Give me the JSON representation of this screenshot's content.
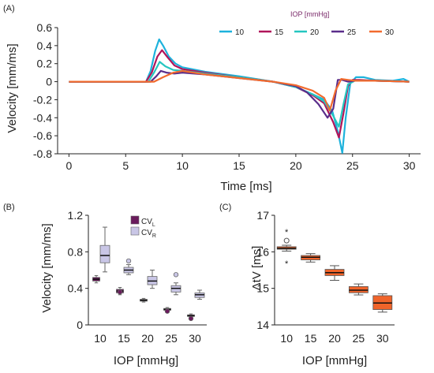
{
  "colors": {
    "iop10": "#1db2dc",
    "iop15": "#b0155a",
    "iop20": "#25c6c0",
    "iop25": "#5a2d8a",
    "iop30": "#f26b2e",
    "cvl": "#6a1b5c",
    "cvr": "#c9c6e6",
    "dtv_box": "#f0642a"
  },
  "chart_data": [
    {
      "panel": "(A)",
      "type": "line",
      "xlabel": "Time [ms]",
      "ylabel": "Velocity [mm/ms]",
      "xlim": [
        -1,
        31
      ],
      "ylim": [
        -0.8,
        0.6
      ],
      "xticks": [
        0,
        5,
        10,
        15,
        20,
        25,
        30
      ],
      "yticks": [
        -0.8,
        -0.6,
        -0.4,
        -0.2,
        0,
        0.2,
        0.4,
        0.6
      ],
      "legend_title": "IOP [mmHg]",
      "legend_position": "top-right",
      "series": [
        {
          "name": "10",
          "color_key": "iop10",
          "x": [
            0,
            6.8,
            7.2,
            7.6,
            7.95,
            8.3,
            8.8,
            9.4,
            10,
            12,
            15,
            18,
            20,
            21.5,
            22.5,
            23.2,
            23.7,
            24.1,
            24.4,
            24.8,
            25.3,
            26,
            27,
            28.5,
            29.5,
            30
          ],
          "y": [
            0,
            0,
            0.12,
            0.34,
            0.47,
            0.4,
            0.28,
            0.2,
            0.16,
            0.11,
            0.06,
            0,
            -0.06,
            -0.14,
            -0.2,
            -0.32,
            -0.55,
            -0.79,
            -0.4,
            -0.02,
            0.05,
            0.05,
            0.02,
            0.01,
            0.03,
            0
          ]
        },
        {
          "name": "15",
          "color_key": "iop15",
          "x": [
            0,
            6.8,
            7.3,
            7.8,
            8.2,
            8.7,
            9.3,
            10,
            12,
            15,
            18,
            20,
            21.5,
            22.5,
            23.3,
            23.8,
            24.2,
            24.6,
            25,
            25.6,
            27,
            30
          ],
          "y": [
            0,
            0,
            0.1,
            0.28,
            0.35,
            0.27,
            0.18,
            0.14,
            0.1,
            0.05,
            0,
            -0.06,
            -0.15,
            -0.24,
            -0.45,
            -0.62,
            -0.35,
            -0.05,
            0.02,
            0.02,
            0.01,
            0
          ]
        },
        {
          "name": "20",
          "color_key": "iop20",
          "x": [
            0,
            7,
            7.5,
            8,
            8.5,
            9.2,
            10,
            12,
            15,
            18,
            20,
            21.5,
            22.5,
            23.3,
            23.8,
            24.2,
            24.6,
            25.2,
            27,
            30
          ],
          "y": [
            0,
            0,
            0.1,
            0.22,
            0.17,
            0.13,
            0.12,
            0.09,
            0.05,
            0,
            -0.06,
            -0.14,
            -0.22,
            -0.38,
            -0.5,
            -0.25,
            -0.03,
            0.01,
            0.01,
            0
          ]
        },
        {
          "name": "25",
          "color_key": "iop25",
          "x": [
            0,
            7.2,
            7.7,
            8.1,
            8.6,
            9.3,
            10,
            12,
            15,
            18,
            20,
            21,
            22,
            22.8,
            23.3,
            23.7,
            24.1,
            24.6,
            25.2,
            27,
            30
          ],
          "y": [
            0,
            0,
            0.06,
            0.12,
            0.1,
            0.09,
            0.1,
            0.08,
            0.04,
            0,
            -0.05,
            -0.12,
            -0.25,
            -0.4,
            -0.3,
            0.02,
            0.02,
            0,
            0.01,
            0.01,
            0
          ]
        },
        {
          "name": "30",
          "color_key": "iop30",
          "x": [
            0,
            7.5,
            8.3,
            9.2,
            10,
            12,
            15,
            18,
            20,
            21.5,
            22.5,
            23,
            23.5,
            24,
            24.6,
            25.2,
            27,
            30
          ],
          "y": [
            0,
            0,
            0.05,
            0.1,
            0.12,
            0.08,
            0.04,
            0,
            -0.04,
            -0.1,
            -0.18,
            -0.32,
            -0.1,
            0.03,
            0.02,
            0.01,
            0.01,
            0
          ]
        }
      ]
    },
    {
      "panel": "(B)",
      "type": "box",
      "xlabel": "IOP [mmHg]",
      "ylabel": "Velocity [mm/ms]",
      "categories": [
        "10",
        "15",
        "20",
        "25",
        "30"
      ],
      "ylim": [
        0,
        1.2
      ],
      "yticks": [
        0,
        0.4,
        0.8,
        1.2
      ],
      "legend_position": "top-right",
      "series": [
        {
          "name": "CV",
          "subscript": "L",
          "color_key": "cvl",
          "boxes": [
            {
              "min": 0.46,
              "q1": 0.48,
              "median": 0.5,
              "q3": 0.52,
              "max": 0.54,
              "outliers": []
            },
            {
              "min": 0.33,
              "q1": 0.35,
              "median": 0.37,
              "q3": 0.39,
              "max": 0.41,
              "outliers": [
                0.36
              ]
            },
            {
              "min": 0.25,
              "q1": 0.26,
              "median": 0.27,
              "q3": 0.28,
              "max": 0.29,
              "outliers": []
            },
            {
              "min": 0.15,
              "q1": 0.16,
              "median": 0.17,
              "q3": 0.18,
              "max": 0.19,
              "outliers": [
                0.15
              ]
            },
            {
              "min": 0.09,
              "q1": 0.095,
              "median": 0.1,
              "q3": 0.11,
              "max": 0.12,
              "outliers": [
                0.07
              ]
            }
          ]
        },
        {
          "name": "CV",
          "subscript": "R",
          "color_key": "cvr",
          "boxes": [
            {
              "min": 0.58,
              "q1": 0.68,
              "median": 0.76,
              "q3": 0.87,
              "max": 1.07,
              "outliers": []
            },
            {
              "min": 0.55,
              "q1": 0.57,
              "median": 0.6,
              "q3": 0.63,
              "max": 0.66,
              "outliers": [
                0.7
              ]
            },
            {
              "min": 0.4,
              "q1": 0.44,
              "median": 0.48,
              "q3": 0.53,
              "max": 0.6,
              "outliers": []
            },
            {
              "min": 0.33,
              "q1": 0.36,
              "median": 0.4,
              "q3": 0.43,
              "max": 0.46,
              "outliers": [
                0.55
              ]
            },
            {
              "min": 0.28,
              "q1": 0.3,
              "median": 0.33,
              "q3": 0.35,
              "max": 0.38,
              "outliers": []
            }
          ]
        }
      ]
    },
    {
      "panel": "(C)",
      "type": "box",
      "xlabel": "IOP [mmHg]",
      "ylabel": "ΔtV [ms]",
      "categories": [
        "10",
        "15",
        "20",
        "25",
        "30"
      ],
      "ylim": [
        14,
        17
      ],
      "yticks": [
        14,
        15,
        16,
        17
      ],
      "series": [
        {
          "name": "",
          "color_key": "dtv_box",
          "boxes": [
            {
              "min": 16.02,
              "q1": 16.07,
              "median": 16.1,
              "q3": 16.14,
              "max": 16.18,
              "outliers": [
                16.22
              ],
              "extremes": [
                16.55,
                15.68
              ]
            },
            {
              "min": 15.72,
              "q1": 15.78,
              "median": 15.85,
              "q3": 15.9,
              "max": 15.95,
              "outliers": [],
              "extremes": []
            },
            {
              "min": 15.22,
              "q1": 15.35,
              "median": 15.43,
              "q3": 15.52,
              "max": 15.62,
              "outliers": [],
              "extremes": []
            },
            {
              "min": 14.82,
              "q1": 14.88,
              "median": 14.95,
              "q3": 15.05,
              "max": 15.12,
              "outliers": [],
              "extremes": []
            },
            {
              "min": 14.35,
              "q1": 14.42,
              "median": 14.6,
              "q3": 14.8,
              "max": 14.85,
              "outliers": [],
              "extremes": []
            }
          ]
        }
      ]
    }
  ]
}
